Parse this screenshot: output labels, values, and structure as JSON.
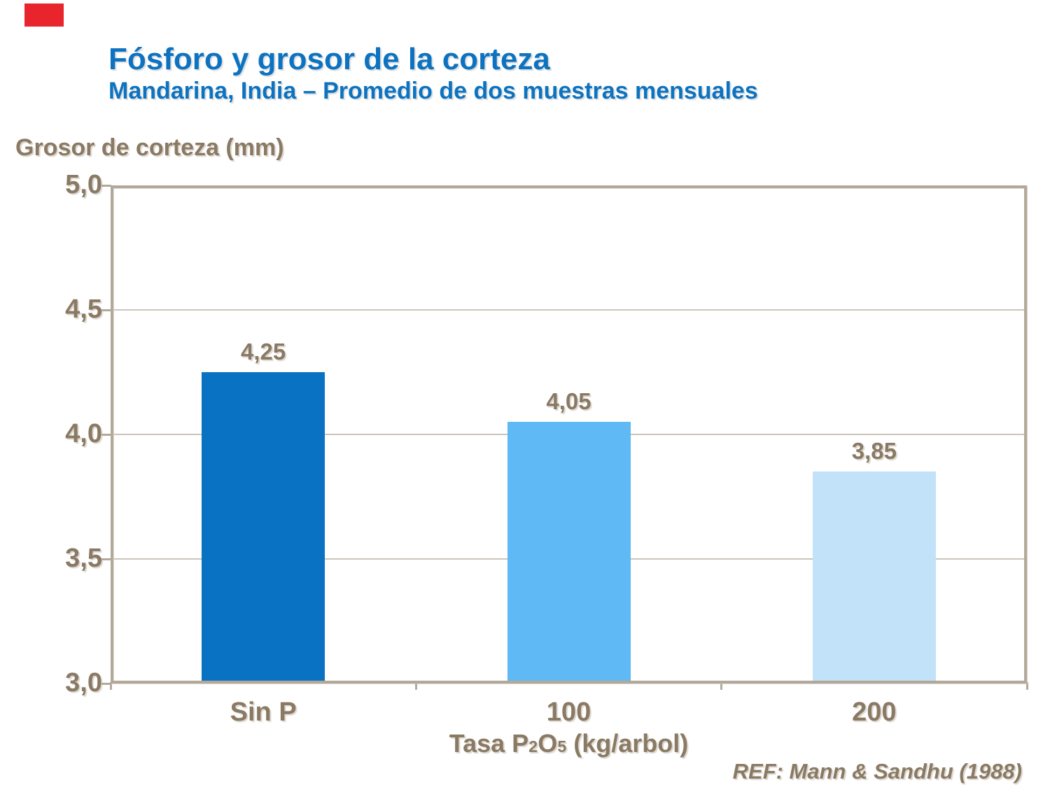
{
  "slide": {
    "background_color": "#FFFFFF"
  },
  "logo": {
    "color": "#E8252C"
  },
  "header": {
    "title": "Fósforo y grosor de la corteza",
    "subtitle": "Mandarina, India – Promedio de dos muestras mensuales",
    "color": "#0D73C0"
  },
  "footer": {
    "reference": "REF: Mann & Sandhu (1988)"
  },
  "chart_data": {
    "type": "bar",
    "title": "Fósforo y grosor de la corteza",
    "subtitle": "Mandarina, India – Promedio de dos muestras mensuales",
    "y_axis_title": "Grosor de corteza (mm)",
    "x_axis_title": "Tasa P2O5 (kg/arbol)",
    "x_axis_title_segments": [
      {
        "text": "Tasa P",
        "subscript": false
      },
      {
        "text": "2",
        "subscript": true
      },
      {
        "text": "O",
        "subscript": false
      },
      {
        "text": "5",
        "subscript": true
      },
      {
        "text": " (kg/arbol)",
        "subscript": false
      }
    ],
    "categories": [
      "Sin P",
      "100",
      "200"
    ],
    "values": [
      4.25,
      4.05,
      3.85
    ],
    "value_labels": [
      "4,25",
      "4,05",
      "3,85"
    ],
    "bar_colors": [
      "#0A72C2",
      "#5FB9F4",
      "#C1E2F9"
    ],
    "ylim": [
      3.0,
      5.0
    ],
    "y_ticks": [
      {
        "value": 5.0,
        "label": "5,0"
      },
      {
        "value": 4.5,
        "label": "4,5"
      },
      {
        "value": 4.0,
        "label": "4,0"
      },
      {
        "value": 3.5,
        "label": "3,5"
      },
      {
        "value": 3.0,
        "label": "3,0"
      }
    ],
    "grid": true,
    "legend": "none",
    "text_color": "#8A7A64",
    "axis_color": "#B3A99B",
    "grid_color": "#CCC5B8"
  }
}
